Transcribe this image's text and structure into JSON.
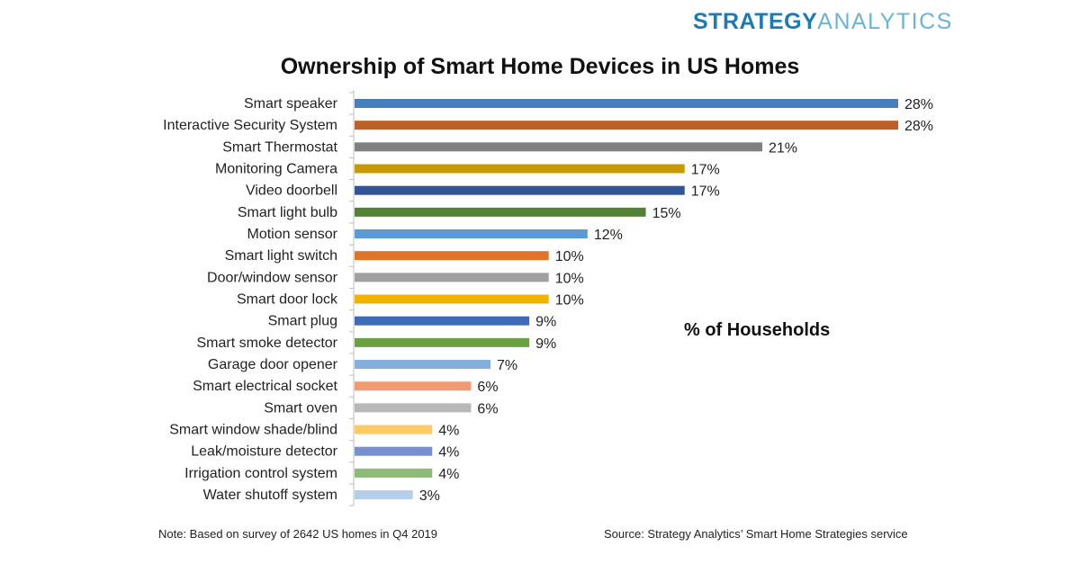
{
  "logo": {
    "part1": "STRATEGY",
    "part2": "ANALYTICS"
  },
  "chart_data": {
    "type": "bar",
    "orientation": "horizontal",
    "title": "Ownership of Smart Home Devices in US Homes",
    "annotation": "% of Households",
    "categories": [
      "Smart speaker",
      "Interactive Security System",
      "Smart Thermostat",
      "Monitoring Camera",
      "Video doorbell",
      "Smart light bulb",
      "Motion sensor",
      "Smart light switch",
      "Door/window sensor",
      "Smart door lock",
      "Smart plug",
      "Smart smoke detector",
      "Garage door opener",
      "Smart electrical socket",
      "Smart oven",
      "Smart window shade/blind",
      "Leak/moisture detector",
      "Irrigation control system",
      "Water shutoff system"
    ],
    "values": [
      28,
      28,
      21,
      17,
      17,
      15,
      12,
      10,
      10,
      10,
      9,
      9,
      7,
      6,
      6,
      4,
      4,
      4,
      3
    ],
    "labels": [
      "28%",
      "28%",
      "21%",
      "17%",
      "17%",
      "15%",
      "12%",
      "10%",
      "10%",
      "10%",
      "9%",
      "9%",
      "7%",
      "6%",
      "6%",
      "4%",
      "4%",
      "4%",
      "3%"
    ],
    "colors": [
      "#4a7ebb",
      "#be5f27",
      "#808080",
      "#c99a00",
      "#2f5597",
      "#548235",
      "#5b9bd5",
      "#e07428",
      "#a0a0a0",
      "#f0b400",
      "#3e6ab8",
      "#6aa243",
      "#85afdc",
      "#f19b75",
      "#b8b8b8",
      "#ffc966",
      "#7790d0",
      "#8fbb78",
      "#b4cde9"
    ],
    "xlim": [
      0,
      28
    ],
    "grid": false,
    "legend": "none"
  },
  "footer": {
    "note": "Note: Based on survey of 2642 US homes in Q4 2019",
    "source": "Source: Strategy Analytics’ Smart Home Strategies service"
  }
}
